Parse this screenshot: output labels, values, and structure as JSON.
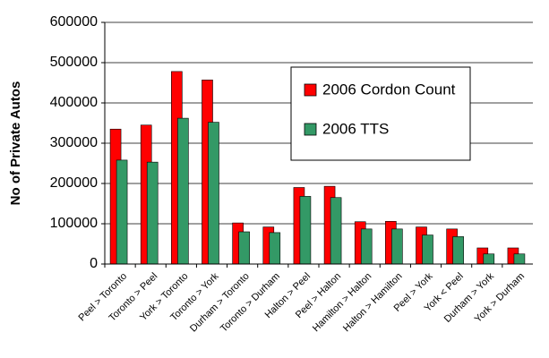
{
  "chart_data": {
    "type": "bar",
    "y_label": "No of Private Autos",
    "categories": [
      "Peel > Toronto",
      "Toronto > Peel",
      "York > Toronto",
      "Toronto > York",
      "Durham > Toronto",
      "Toronto > Durham",
      "Halton > Peel",
      "Peel > Halton",
      "Hamilton > Halton",
      "Halton > Hamilton",
      "Peel > York",
      "York < Peel",
      "Durham > York",
      "York > Durham"
    ],
    "series": [
      {
        "name": "2006 Cordon Count",
        "color": "#ff0000",
        "values": [
          335000,
          345000,
          478000,
          457000,
          102000,
          92000,
          190000,
          193000,
          105000,
          106000,
          92000,
          87000,
          40000,
          40000
        ]
      },
      {
        "name": "2006 TTS",
        "color": "#339966",
        "values": [
          258000,
          253000,
          362000,
          352000,
          80000,
          78000,
          168000,
          165000,
          87000,
          87000,
          72000,
          68000,
          25000,
          25000
        ]
      }
    ],
    "ylim": [
      0,
      600000
    ],
    "yticks": [
      0,
      100000,
      200000,
      300000,
      400000,
      500000,
      600000
    ],
    "grid": true
  }
}
